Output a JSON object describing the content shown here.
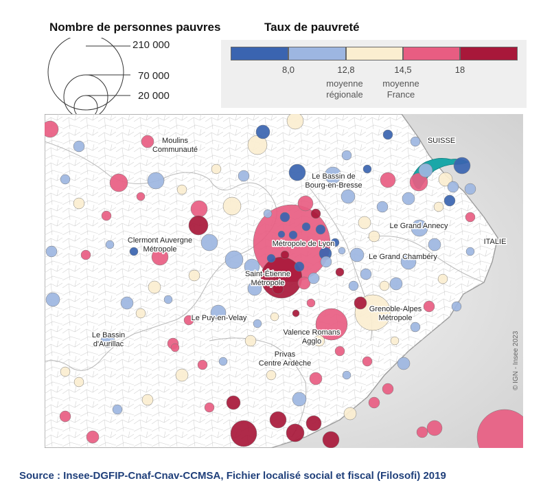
{
  "legend": {
    "size_title": "Nombre de personnes pauvres",
    "size_items": [
      {
        "label": "210  000",
        "value": 210000
      },
      {
        "label": "70  000",
        "value": 70000
      },
      {
        "label": "20  000",
        "value": 20000
      }
    ],
    "color_title": "Taux de pauvreté",
    "bins": [
      {
        "color": "#3a64b0"
      },
      {
        "color": "#9db6e1"
      },
      {
        "color": "#fbeed0"
      },
      {
        "color": "#e85d82"
      },
      {
        "color": "#a8183a"
      }
    ],
    "thresholds": [
      "8,0",
      "12,8",
      "14,5",
      "18"
    ],
    "notes": [
      {
        "text": "moyenne régionale"
      },
      {
        "text": "moyenne France"
      }
    ]
  },
  "map": {
    "countries": [
      "SUISSE",
      "ITALIE"
    ],
    "places": [
      "Moulins Communauté",
      "Le Bassin de Bourg-en-Bresse",
      "Le Grand Annecy",
      "Clermont Auvergne Métropole",
      "Métropole de Lyon",
      "Le Grand Chambéry",
      "Saint-Étienne Métropole",
      "Grenoble-Alpes Métropole",
      "Le Puy-en-Velay",
      "Le Bassin d'Aurillac",
      "Valence Romans Agglo",
      "Privas Centre Ardèche"
    ],
    "copyright": "© IGN - Insee 2023"
  },
  "source": "Source : Insee-DGFIP-Cnaf-Cnav-CCMSA, Fichier localisé social et fiscal (Filosofi) 2019"
}
